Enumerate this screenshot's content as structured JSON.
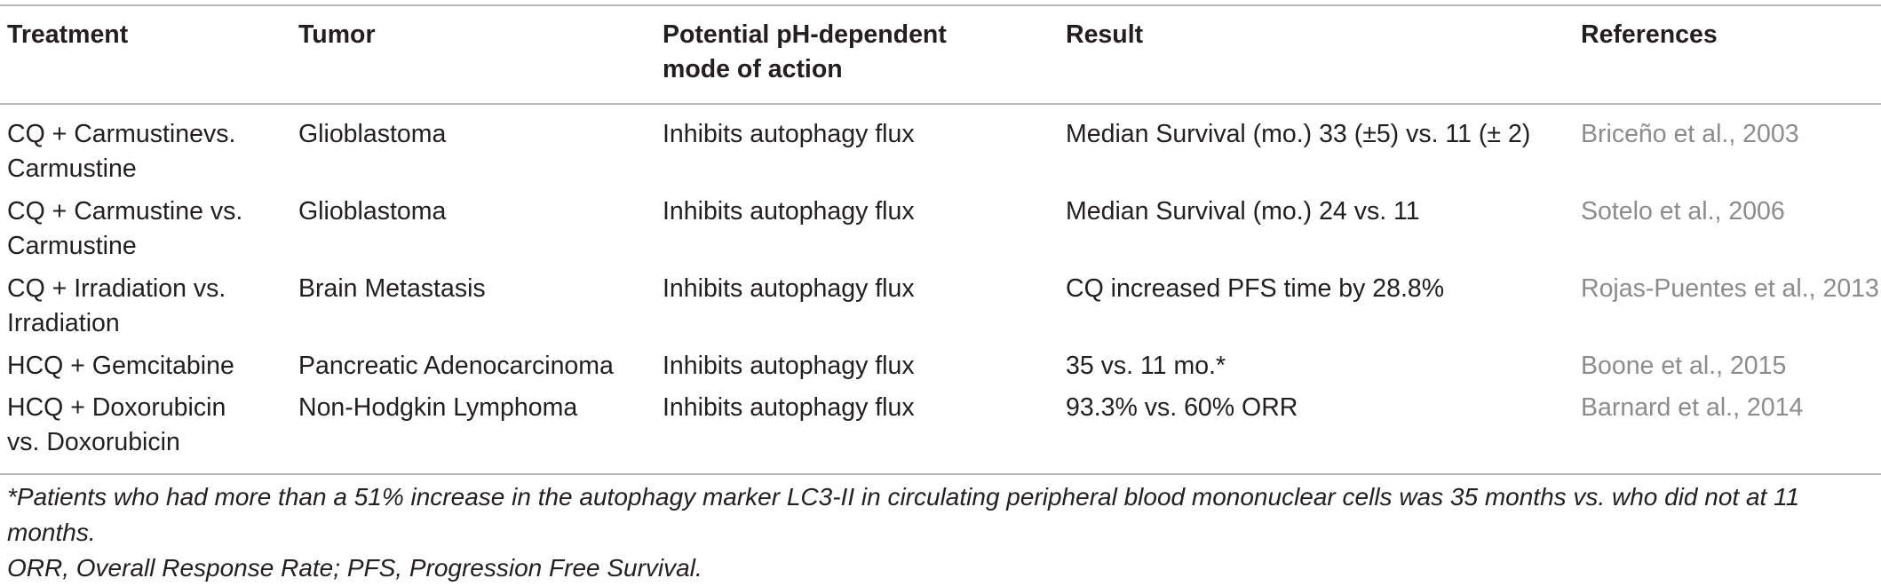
{
  "table": {
    "headers": [
      "Treatment",
      "Tumor",
      "Potential pH-dependent\nmode of action",
      "Result",
      "References"
    ],
    "rows": [
      {
        "treatment": "CQ + Carmustinevs.\nCarmustine",
        "tumor": "Glioblastoma",
        "mode": "Inhibits autophagy flux",
        "result": "Median Survival (mo.) 33 (±5) vs. 11 (± 2)",
        "reference": "Briceño et al., 2003"
      },
      {
        "treatment": "CQ + Carmustine vs.\nCarmustine",
        "tumor": "Glioblastoma",
        "mode": "Inhibits autophagy flux",
        "result": "Median Survival (mo.) 24 vs. 11",
        "reference": "Sotelo et al., 2006"
      },
      {
        "treatment": "CQ + Irradiation vs.\nIrradiation",
        "tumor": "Brain Metastasis",
        "mode": "Inhibits autophagy flux",
        "result": "CQ increased PFS time by 28.8%",
        "reference": "Rojas-Puentes et al., 2013"
      },
      {
        "treatment": "HCQ + Gemcitabine",
        "tumor": "Pancreatic Adenocarcinoma",
        "mode": "Inhibits autophagy flux",
        "result": "35 vs. 11 mo.*",
        "reference": "Boone et al., 2015"
      },
      {
        "treatment": "HCQ + Doxorubicin\nvs. Doxorubicin",
        "tumor": "Non-Hodgkin Lymphoma",
        "mode": "Inhibits autophagy flux",
        "result": "93.3% vs. 60% ORR",
        "reference": "Barnard et al., 2014"
      }
    ]
  },
  "footnotes": {
    "asterisk_note": "*Patients who had more than a 51% increase in the autophagy marker LC3-II in circulating peripheral blood mononuclear cells was 35 months vs. who did not at 11 months.",
    "abbreviations": "ORR, Overall Response Rate; PFS, Progression Free Survival."
  },
  "colors": {
    "text": "#231f20",
    "reference_link": "#8c8c8c",
    "rule": "#b7b7b7"
  }
}
